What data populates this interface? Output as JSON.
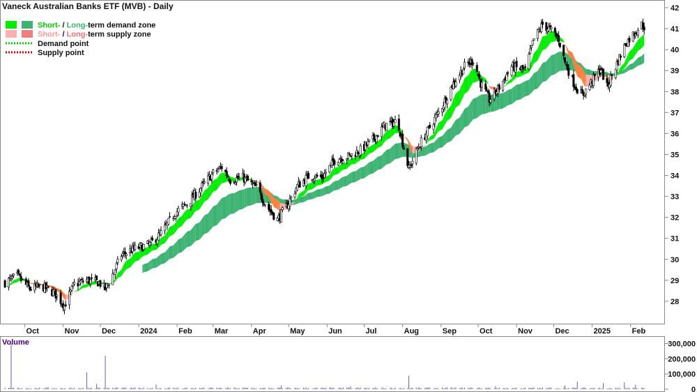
{
  "title": "Vaneck Australian Banks ETF (MVB) - Daily",
  "legend": {
    "demand_zone": {
      "short": "Short-",
      "sep": " / ",
      "long": "Long-",
      "rest": "term demand zone"
    },
    "supply_zone": {
      "short": "Short-",
      "sep": " / ",
      "long": "Long-",
      "rest": "term supply zone"
    },
    "demand_point": "Demand point",
    "supply_point": "Supply point"
  },
  "colors": {
    "short_demand": "#00ee00",
    "long_demand": "#3cb371",
    "short_supply": "#ffb0b0",
    "long_supply": "#f08080",
    "supply_orange": "#ff7f3f",
    "demand_point": "#00cc00",
    "supply_point": "#dd0000",
    "candle": "#000000",
    "volume_bar": "#6060c0",
    "volume_label": "#4b0082"
  },
  "volume_panel_label": "Volume",
  "chart_data": {
    "type": "candlestick",
    "title": "Vaneck Australian Banks ETF (MVB) - Daily",
    "x_tick_labels": [
      "Oct",
      "Nov",
      "Dec",
      "2024",
      "Feb",
      "Mar",
      "Apr",
      "May",
      "Jun",
      "Jul",
      "Aug",
      "Sep",
      "Oct",
      "Nov",
      "Dec",
      "2025",
      "Feb"
    ],
    "y_ticks": [
      28,
      29,
      30,
      31,
      32,
      33,
      34,
      35,
      36,
      37,
      38,
      39,
      40,
      41,
      42
    ],
    "ylim": [
      27,
      42.3
    ],
    "volume_ticks": [
      "0",
      "100,000",
      "200,000",
      "300,000"
    ],
    "volume_tick_values": [
      0,
      100000,
      200000,
      300000
    ],
    "volume_ylim": [
      0,
      330000
    ],
    "price_anchors": [
      [
        "2023-09-15",
        28.9
      ],
      [
        "2023-09-25",
        29.2
      ],
      [
        "2023-10-05",
        28.6
      ],
      [
        "2023-10-15",
        28.7
      ],
      [
        "2023-10-25",
        28.4
      ],
      [
        "2023-11-02",
        27.8
      ],
      [
        "2023-11-10",
        28.8
      ],
      [
        "2023-11-20",
        29.0
      ],
      [
        "2023-11-30",
        28.9
      ],
      [
        "2023-12-05",
        28.6
      ],
      [
        "2023-12-12",
        29.4
      ],
      [
        "2023-12-18",
        30.2
      ],
      [
        "2023-12-28",
        30.5
      ],
      [
        "2024-01-10",
        30.7
      ],
      [
        "2024-01-20",
        31.3
      ],
      [
        "2024-01-30",
        32.2
      ],
      [
        "2024-02-10",
        32.7
      ],
      [
        "2024-02-20",
        33.4
      ],
      [
        "2024-03-01",
        34.1
      ],
      [
        "2024-03-08",
        34.4
      ],
      [
        "2024-03-15",
        33.8
      ],
      [
        "2024-03-25",
        33.9
      ],
      [
        "2024-04-05",
        33.4
      ],
      [
        "2024-04-15",
        32.4
      ],
      [
        "2024-04-22",
        31.9
      ],
      [
        "2024-04-30",
        32.6
      ],
      [
        "2024-05-08",
        33.5
      ],
      [
        "2024-05-18",
        34.0
      ],
      [
        "2024-05-28",
        33.9
      ],
      [
        "2024-06-08",
        34.8
      ],
      [
        "2024-06-18",
        34.9
      ],
      [
        "2024-06-28",
        35.2
      ],
      [
        "2024-07-08",
        35.7
      ],
      [
        "2024-07-18",
        36.4
      ],
      [
        "2024-07-28",
        36.6
      ],
      [
        "2024-08-06",
        34.3
      ],
      [
        "2024-08-14",
        35.4
      ],
      [
        "2024-08-22",
        36.2
      ],
      [
        "2024-09-01",
        37.2
      ],
      [
        "2024-09-10",
        38.3
      ],
      [
        "2024-09-20",
        39.2
      ],
      [
        "2024-09-27",
        39.5
      ],
      [
        "2024-10-03",
        38.4
      ],
      [
        "2024-10-10",
        37.6
      ],
      [
        "2024-10-18",
        38.2
      ],
      [
        "2024-10-28",
        39.2
      ],
      [
        "2024-11-08",
        39.0
      ],
      [
        "2024-11-15",
        40.5
      ],
      [
        "2024-11-22",
        41.2
      ],
      [
        "2024-11-29",
        40.9
      ],
      [
        "2024-12-05",
        40.5
      ],
      [
        "2024-12-10",
        39.4
      ],
      [
        "2024-12-18",
        38.3
      ],
      [
        "2024-12-24",
        37.8
      ],
      [
        "2025-01-02",
        38.6
      ],
      [
        "2025-01-08",
        39.1
      ],
      [
        "2025-01-13",
        38.2
      ],
      [
        "2025-01-20",
        39.2
      ],
      [
        "2025-01-28",
        40.3
      ],
      [
        "2025-02-04",
        40.8
      ],
      [
        "2025-02-10",
        41.2
      ],
      [
        "2025-02-12",
        41.1
      ]
    ],
    "volume_spikes": [
      [
        "2023-09-20",
        300000
      ],
      [
        "2023-11-20",
        110000
      ],
      [
        "2023-11-28",
        35000
      ],
      [
        "2023-12-05",
        220000
      ],
      [
        "2024-01-15",
        30000
      ],
      [
        "2024-04-25",
        25000
      ],
      [
        "2024-06-20",
        20000
      ],
      [
        "2024-08-06",
        88000
      ],
      [
        "2024-10-15",
        20000
      ],
      [
        "2024-12-10",
        25000
      ],
      [
        "2024-12-20",
        50000
      ],
      [
        "2025-01-10",
        40000
      ],
      [
        "2025-01-27",
        45000
      ],
      [
        "2025-02-05",
        30000
      ]
    ]
  }
}
